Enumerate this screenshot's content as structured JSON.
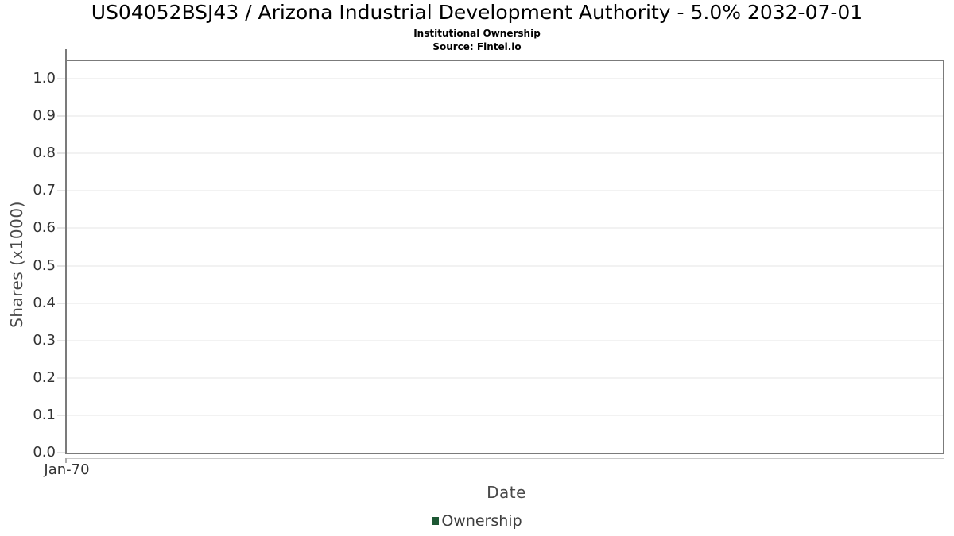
{
  "chart_data": {
    "type": "line",
    "title": "US04052BSJ43 / Arizona Industrial Development Authority - 5.0% 2032-07-01",
    "subtitle": "Institutional Ownership",
    "source": "Source: Fintel.io",
    "xlabel": "Date",
    "ylabel": "Shares (x1000)",
    "x_tick_labels": [
      "Jan-70"
    ],
    "y_tick_labels": [
      "0.0",
      "0.1",
      "0.2",
      "0.3",
      "0.4",
      "0.5",
      "0.6",
      "0.7",
      "0.8",
      "0.9",
      "1.0"
    ],
    "ylim": [
      0,
      1.047
    ],
    "grid": true,
    "legend": {
      "position": "bottom",
      "entries": [
        {
          "label": "Ownership",
          "color": "#1d5733"
        }
      ]
    },
    "series": [
      {
        "name": "Ownership",
        "color": "#1d5733",
        "x": [],
        "values": []
      }
    ],
    "colors": {
      "plot_border": "#7b7b7b",
      "gridline": "#e5e5e5",
      "tick": "#c9c9c9",
      "tick_label": "#333333",
      "axis_title": "#4a4a4a",
      "title_text": "#000000",
      "background": "#ffffff"
    }
  }
}
